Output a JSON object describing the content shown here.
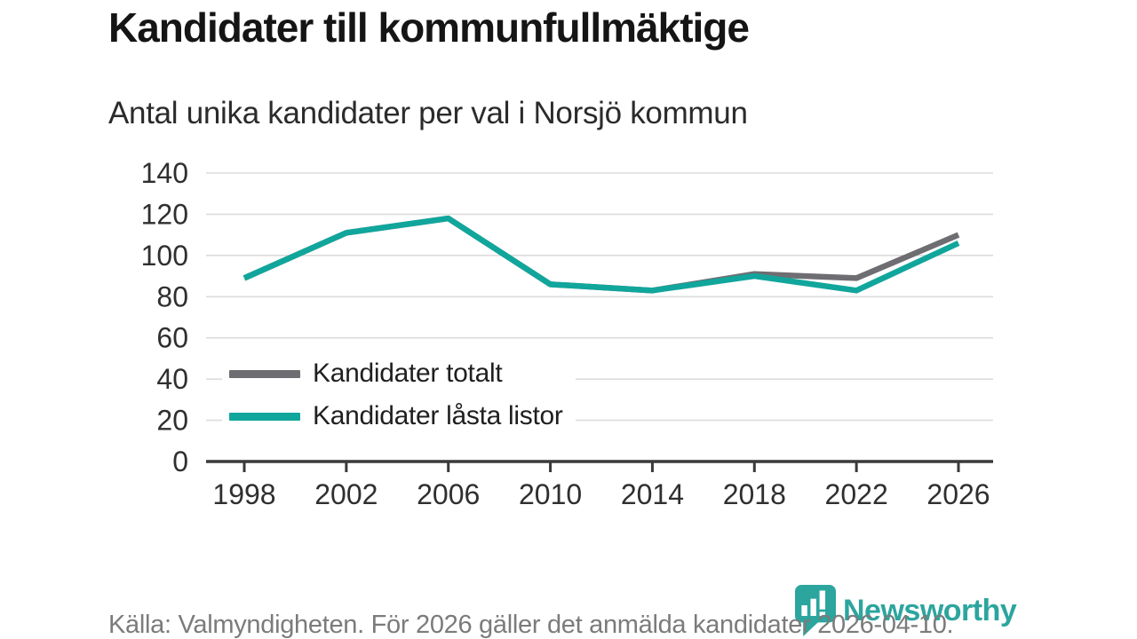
{
  "chart_data": {
    "type": "line",
    "title": "Kandidater till kommunfullmäktige",
    "subtitle": "Antal unika kandidater per val i Norsjö kommun",
    "x": [
      1998,
      2002,
      2006,
      2010,
      2014,
      2018,
      2022,
      2026
    ],
    "series": [
      {
        "name": "Kandidater totalt",
        "color": "#6e6e72",
        "values": [
          89,
          111,
          118,
          86,
          83,
          91,
          89,
          110
        ]
      },
      {
        "name": "Kandidater låsta listor",
        "color": "#11a69c",
        "values": [
          89,
          111,
          118,
          86,
          83,
          90,
          83,
          106
        ]
      }
    ],
    "xlabel": "",
    "ylabel": "",
    "ylim": [
      0,
      140
    ],
    "ytick_step": 20,
    "grid": "horizontal",
    "legend_position": "inside-lower-left"
  },
  "footer": {
    "source": "Källa: Valmyndigheten. För 2026 gäller det anmälda kandidater 2026-04-10.",
    "logo_text": "Newsworthy"
  },
  "colors": {
    "grid": "#dcdcdc",
    "axis": "#3a3a3a",
    "tick_text": "#2f2f2f",
    "muted_text": "#7b7b7b",
    "brand_teal": "#2ca59e"
  }
}
